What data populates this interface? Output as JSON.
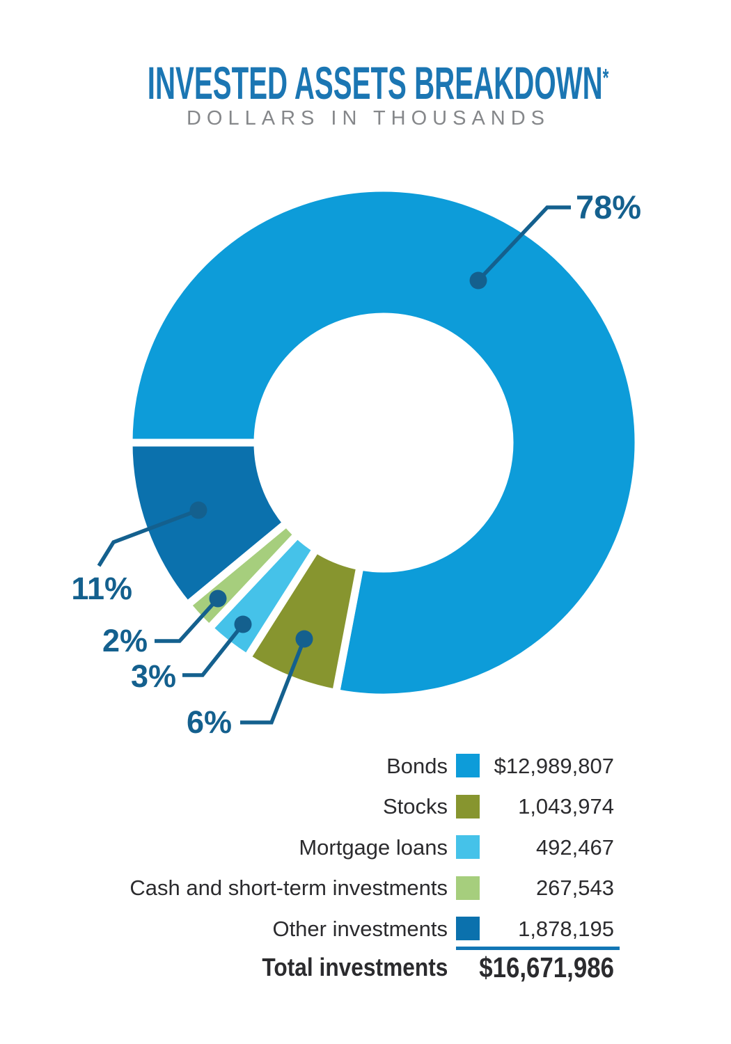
{
  "title": {
    "text": "INVESTED ASSETS BREAKDOWN",
    "asterisk": "*",
    "subtitle": "DOLLARS IN THOUSANDS"
  },
  "chart_data": {
    "type": "pie",
    "variant": "donut",
    "title": "Invested Assets Breakdown",
    "units": "dollars in thousands",
    "start_angle_deg_clockwise_from_top": 270,
    "direction": "clockwise",
    "callout_color": "#14608E",
    "slices": [
      {
        "label": "Bonds",
        "pct": 78,
        "pct_label": "78%",
        "value": 12989807,
        "value_label": "$12,989,807",
        "color": "#0D9CD9"
      },
      {
        "label": "Stocks",
        "pct": 6,
        "pct_label": "6%",
        "value": 1043974,
        "value_label": "1,043,974",
        "color": "#87952F"
      },
      {
        "label": "Mortgage loans",
        "pct": 3,
        "pct_label": "3%",
        "value": 492467,
        "value_label": "492,467",
        "color": "#45C2E9"
      },
      {
        "label": "Cash and short-term investments",
        "pct": 2,
        "pct_label": "2%",
        "value": 267543,
        "value_label": "267,543",
        "color": "#A6CE7D"
      },
      {
        "label": "Other investments",
        "pct": 11,
        "pct_label": "11%",
        "value": 1878195,
        "value_label": "1,878,195",
        "color": "#0B71AD"
      }
    ],
    "total": {
      "label": "Total investments",
      "value": 16671986,
      "value_label": "$16,671,986"
    },
    "legend_position": "bottom-right"
  }
}
